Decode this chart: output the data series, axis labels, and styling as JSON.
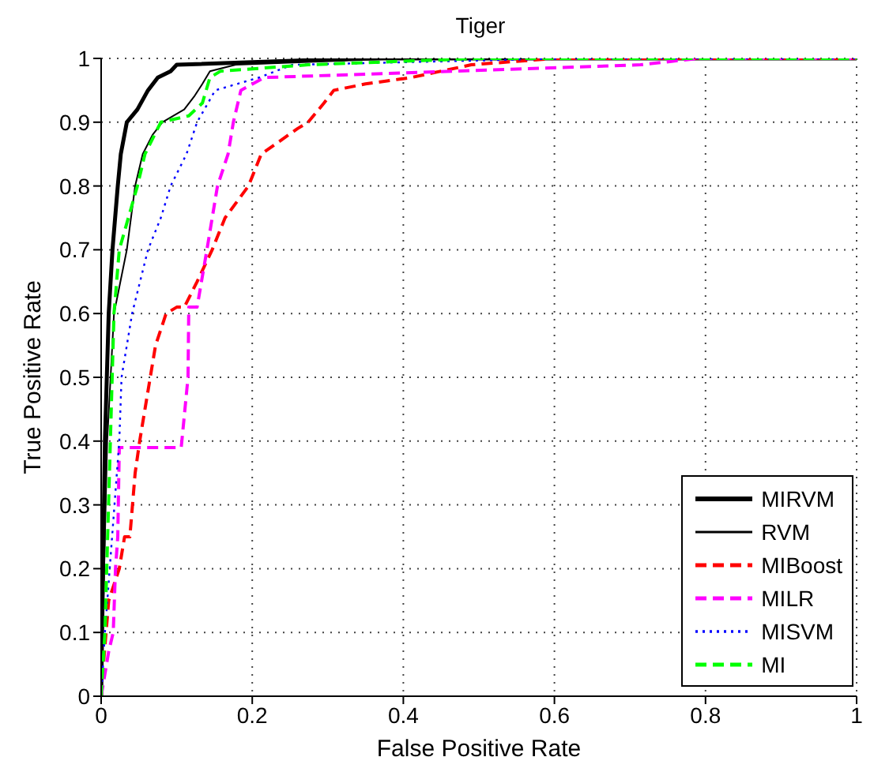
{
  "chart_data": {
    "type": "line",
    "title": "Tiger",
    "xlabel": "False Positive Rate",
    "ylabel": "True Positive Rate",
    "xlim": [
      0,
      1
    ],
    "ylim": [
      0,
      1
    ],
    "xticks": [
      0,
      0.2,
      0.4,
      0.6,
      0.8,
      1
    ],
    "yticks": [
      0,
      0.1,
      0.2,
      0.3,
      0.4,
      0.5,
      0.6,
      0.7,
      0.8,
      0.9,
      1
    ],
    "grid": true,
    "legend": "bottom right",
    "marker": "none",
    "series": [
      {
        "name": "MIRVM",
        "color": "#000000",
        "line_style": "solid",
        "x": [
          0,
          0.005,
          0.01,
          0.015,
          0.022,
          0.026,
          0.034,
          0.048,
          0.062,
          0.075,
          0.092,
          0.1,
          0.343,
          1
        ],
        "values": [
          0,
          0.4,
          0.6,
          0.7,
          0.8,
          0.85,
          0.9,
          0.92,
          0.95,
          0.97,
          0.98,
          0.99,
          1,
          1
        ]
      },
      {
        "name": "RVM",
        "color": "#000000",
        "line_style": "solid",
        "x": [
          0,
          0.008,
          0.017,
          0.034,
          0.045,
          0.055,
          0.068,
          0.081,
          0.11,
          0.123,
          0.134,
          0.144,
          0.178,
          0.4,
          1
        ],
        "values": [
          0,
          0.4,
          0.6,
          0.7,
          0.8,
          0.85,
          0.88,
          0.9,
          0.92,
          0.94,
          0.96,
          0.98,
          0.99,
          1,
          1
        ]
      },
      {
        "name": "MIBoost",
        "color": "#ff0000",
        "line_style": "dashed",
        "x": [
          0,
          0.003,
          0.01,
          0.024,
          0.031,
          0.038,
          0.045,
          0.051,
          0.065,
          0.072,
          0.086,
          0.1,
          0.11,
          0.127,
          0.147,
          0.164,
          0.195,
          0.212,
          0.236,
          0.26,
          0.274,
          0.295,
          0.308,
          0.35,
          0.41,
          0.49,
          0.6,
          1
        ],
        "values": [
          0,
          0.05,
          0.15,
          0.2,
          0.25,
          0.25,
          0.35,
          0.4,
          0.5,
          0.55,
          0.6,
          0.61,
          0.61,
          0.65,
          0.7,
          0.75,
          0.8,
          0.85,
          0.87,
          0.89,
          0.9,
          0.93,
          0.95,
          0.96,
          0.97,
          0.99,
          1,
          1
        ]
      },
      {
        "name": "MILR",
        "color": "#ff00ff",
        "line_style": "dashed",
        "x": [
          0,
          0.01,
          0.016,
          0.019,
          0.022,
          0.024,
          0.106,
          0.115,
          0.116,
          0.127,
          0.14,
          0.154,
          0.168,
          0.175,
          0.185,
          0.216,
          0.714,
          0.79,
          1
        ],
        "values": [
          0,
          0.07,
          0.1,
          0.2,
          0.25,
          0.39,
          0.39,
          0.5,
          0.61,
          0.61,
          0.7,
          0.8,
          0.85,
          0.9,
          0.95,
          0.97,
          0.99,
          1,
          1
        ]
      },
      {
        "name": "MISVM",
        "color": "#0000ff",
        "line_style": "dotted",
        "x": [
          0,
          0.005,
          0.024,
          0.027,
          0.041,
          0.062,
          0.079,
          0.092,
          0.113,
          0.127,
          0.151,
          0.209,
          0.253,
          0.62,
          1
        ],
        "values": [
          0,
          0.1,
          0.4,
          0.5,
          0.6,
          0.7,
          0.75,
          0.8,
          0.85,
          0.9,
          0.95,
          0.97,
          0.99,
          1,
          1
        ]
      },
      {
        "name": "MI",
        "color": "#00ff00",
        "line_style": "dashed",
        "x": [
          0,
          0.005,
          0.017,
          0.024,
          0.048,
          0.058,
          0.079,
          0.116,
          0.134,
          0.144,
          0.158,
          0.274,
          0.5,
          1
        ],
        "values": [
          0,
          0.1,
          0.6,
          0.7,
          0.8,
          0.85,
          0.9,
          0.91,
          0.93,
          0.97,
          0.98,
          0.99,
          1,
          1
        ]
      }
    ]
  }
}
